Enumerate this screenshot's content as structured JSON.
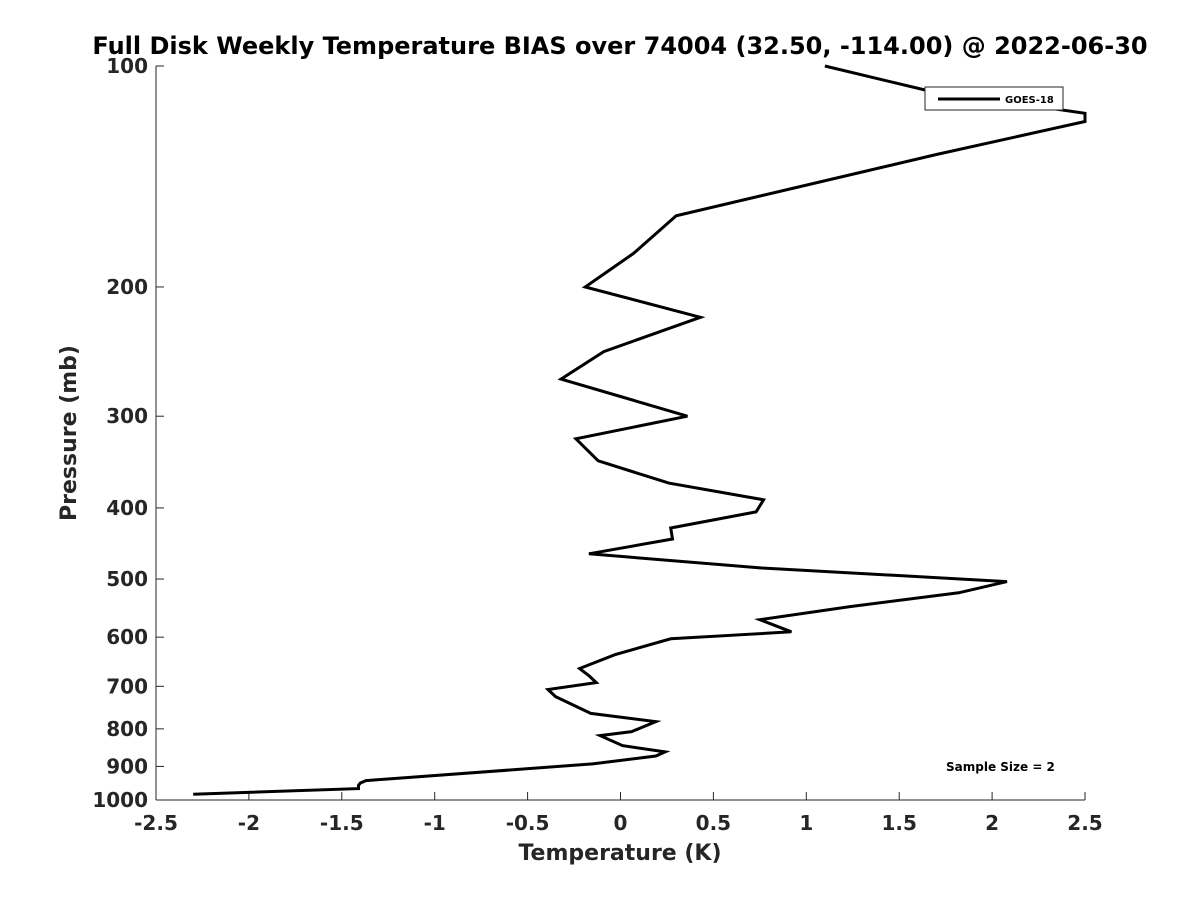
{
  "chart_data": {
    "type": "line",
    "title": "Full Disk Weekly Temperature BIAS over 74004 (32.50, -114.00) @ 2022-06-30",
    "xlabel": "Temperature (K)",
    "ylabel": "Pressure (mb)",
    "xlim": [
      -2.5,
      2.5
    ],
    "ylim": [
      100,
      1000
    ],
    "y_scale": "log",
    "y_reversed": true,
    "x_ticks": [
      -2.5,
      -2,
      -1.5,
      -1,
      -0.5,
      0,
      0.5,
      1,
      1.5,
      2,
      2.5
    ],
    "x_tick_labels": [
      "-2.5",
      "-2",
      "-1.5",
      "-1",
      "-0.5",
      "0",
      "0.5",
      "1",
      "1.5",
      "2",
      "2.5"
    ],
    "y_ticks": [
      100,
      200,
      300,
      400,
      500,
      600,
      700,
      800,
      900,
      1000
    ],
    "y_tick_labels": [
      "100",
      "200",
      "300",
      "400",
      "500",
      "600",
      "700",
      "800",
      "900",
      "1000"
    ],
    "grid": false,
    "legend_position": "top-right",
    "series": [
      {
        "name": "GOES-18",
        "color": "#000000",
        "points": [
          [
            1.1,
            100
          ],
          [
            1.65,
            108
          ],
          [
            2.5,
            116
          ],
          [
            2.5,
            119
          ],
          [
            1.7,
            132
          ],
          [
            0.3,
            160
          ],
          [
            0.07,
            180
          ],
          [
            -0.19,
            200
          ],
          [
            0.43,
            220
          ],
          [
            -0.09,
            245
          ],
          [
            -0.32,
            267
          ],
          [
            0.0,
            282
          ],
          [
            0.36,
            300
          ],
          [
            -0.24,
            322
          ],
          [
            -0.12,
            345
          ],
          [
            0.26,
            370
          ],
          [
            0.77,
            390
          ],
          [
            0.73,
            405
          ],
          [
            0.27,
            426
          ],
          [
            0.28,
            441
          ],
          [
            -0.17,
            462
          ],
          [
            0.76,
            483
          ],
          [
            2.08,
            504
          ],
          [
            1.82,
            522
          ],
          [
            1.24,
            545
          ],
          [
            0.75,
            568
          ],
          [
            0.92,
            590
          ],
          [
            0.27,
            603
          ],
          [
            -0.03,
            634
          ],
          [
            -0.22,
            662
          ],
          [
            -0.17,
            677
          ],
          [
            -0.13,
            692
          ],
          [
            -0.39,
            707
          ],
          [
            -0.35,
            723
          ],
          [
            -0.16,
            762
          ],
          [
            0.19,
            782
          ],
          [
            0.06,
            807
          ],
          [
            -0.11,
            817
          ],
          [
            0.01,
            843
          ],
          [
            0.24,
            860
          ],
          [
            0.19,
            871
          ],
          [
            -0.15,
            893
          ],
          [
            -1.37,
            941
          ],
          [
            -1.4,
            948
          ],
          [
            -1.41,
            955
          ],
          [
            -1.41,
            965
          ],
          [
            -2.3,
            982
          ]
        ]
      }
    ],
    "annotations": [
      {
        "text": "Sample Size = 2",
        "position": "bottom-right"
      }
    ]
  }
}
